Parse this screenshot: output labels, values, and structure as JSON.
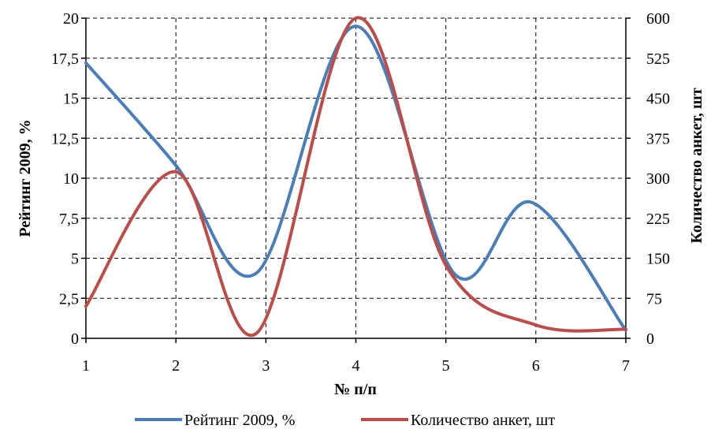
{
  "chart_data": {
    "type": "line",
    "smooth": true,
    "x": [
      1,
      2,
      3,
      4,
      5,
      6,
      7
    ],
    "xlabel": "№ п/п",
    "xlim": [
      1,
      7
    ],
    "x_ticks": [
      "1",
      "2",
      "3",
      "4",
      "5",
      "6",
      "7"
    ],
    "ylabel_left": "Рейтинг 2009, %",
    "ylim_left": [
      0,
      20
    ],
    "y_ticks_left": [
      "0",
      "2,5",
      "5",
      "7,5",
      "10",
      "12,5",
      "15",
      "17,5",
      "20"
    ],
    "ylabel_right": "Количество анкет, шт",
    "ylim_right": [
      0,
      600
    ],
    "y_ticks_right": [
      "0",
      "75",
      "150",
      "225",
      "300",
      "375",
      "450",
      "525",
      "600"
    ],
    "grid": true,
    "grid_style": "dashed",
    "legend_position": "bottom",
    "series": [
      {
        "name": "Рейтинг 2009, %",
        "axis": "left",
        "color": "#4a7ebb",
        "points": [
          [
            1,
            17.2
          ],
          [
            2,
            10.8
          ],
          [
            2.9,
            4.1
          ],
          [
            4,
            19.5
          ],
          [
            5.1,
            4.0
          ],
          [
            5.95,
            8.5
          ],
          [
            7,
            0.5
          ]
        ]
      },
      {
        "name": "Количество анкет, шт",
        "axis": "right",
        "color": "#be4b48",
        "points": [
          [
            1,
            60
          ],
          [
            2,
            312
          ],
          [
            2.9,
            10
          ],
          [
            4,
            600
          ],
          [
            5,
            137
          ],
          [
            6,
            25
          ],
          [
            7,
            17
          ]
        ]
      }
    ]
  }
}
